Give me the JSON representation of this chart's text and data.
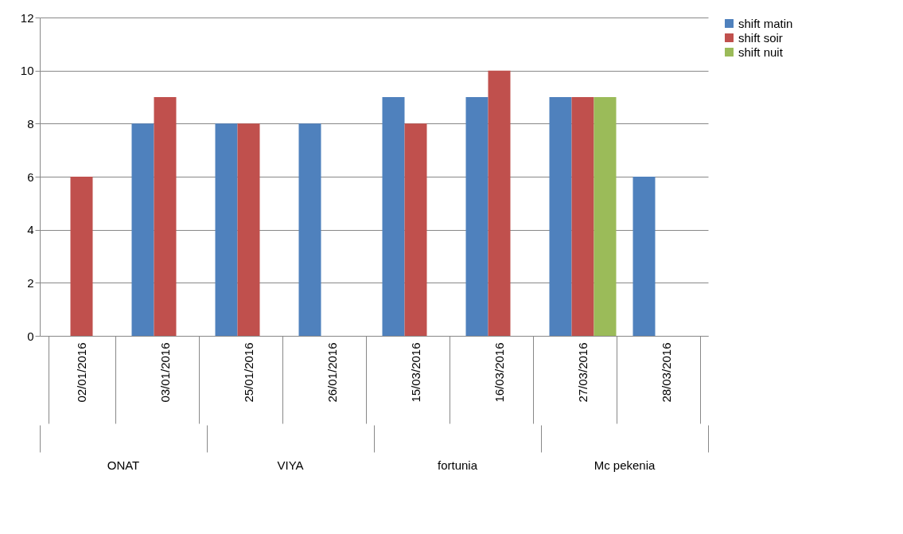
{
  "chart_data": {
    "type": "bar",
    "categories": [
      "02/01/2016",
      "03/01/2016",
      "25/01/2016",
      "26/01/2016",
      "15/03/2016",
      "16/03/2016",
      "27/03/2016",
      "28/03/2016"
    ],
    "series": [
      {
        "name": "shift matin",
        "color": "#4f81bd",
        "values": [
          null,
          8,
          8,
          8,
          9,
          9,
          9,
          6
        ]
      },
      {
        "name": "shift soir",
        "color": "#c0504d",
        "values": [
          6,
          9,
          8,
          null,
          8,
          10,
          9,
          null
        ]
      },
      {
        "name": "shift nuit",
        "color": "#9bbb59",
        "values": [
          null,
          null,
          null,
          null,
          null,
          null,
          9,
          null
        ]
      }
    ],
    "annotations": [
      "ONAT",
      "VIYA",
      "fortunia",
      "Mc pekenia"
    ],
    "ylim": [
      0,
      12
    ],
    "yticks": [
      0,
      2,
      4,
      6,
      8,
      10,
      12
    ],
    "grid": "y",
    "legend": "right"
  }
}
